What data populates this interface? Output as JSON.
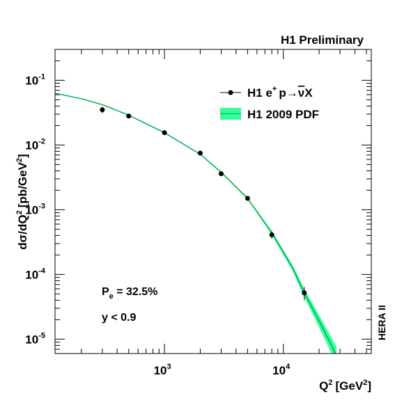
{
  "chart_data": {
    "type": "scatter",
    "title": "H1 Preliminary",
    "xlabel": "Q",
    "xlabel_sup": "2",
    "xlabel_unit": "[GeV",
    "xlabel_unit_sup": "2",
    "xlabel_close": "]",
    "ylabel": "dσ/dQ",
    "ylabel_sup": "2",
    "ylabel_unit": "[pb/GeV",
    "ylabel_unit_sup": "2",
    "ylabel_close": "]",
    "xscale": "log",
    "yscale": "log",
    "xlim": [
      120,
      55000
    ],
    "ylim": [
      6e-06,
      0.3
    ],
    "grid": false,
    "legend_position": "top-right",
    "x_ticks": [
      {
        "value": 1000,
        "base": "10",
        "exp": "3"
      },
      {
        "value": 10000,
        "base": "10",
        "exp": "4"
      }
    ],
    "y_ticks": [
      {
        "value": 1e-05,
        "base": "10",
        "exp": "-5"
      },
      {
        "value": 0.0001,
        "base": "10",
        "exp": "-4"
      },
      {
        "value": 0.001,
        "base": "10",
        "exp": "-3"
      },
      {
        "value": 0.01,
        "base": "10",
        "exp": "-2"
      },
      {
        "value": 0.1,
        "base": "10",
        "exp": "-1"
      }
    ],
    "series": [
      {
        "name": "H1 e+p→ν̄X",
        "legend_parts": {
          "a": "H1 e",
          "a_sup": "+",
          "b": "p→",
          "c": "ν",
          "d": "X"
        },
        "kind": "points",
        "color": "#000000",
        "points": [
          {
            "x": 300,
            "y": 0.035,
            "ylo": 0.031,
            "yhi": 0.039
          },
          {
            "x": 500,
            "y": 0.028,
            "ylo": 0.0265,
            "yhi": 0.0295
          },
          {
            "x": 1000,
            "y": 0.0155,
            "ylo": 0.0148,
            "yhi": 0.0162
          },
          {
            "x": 2000,
            "y": 0.0075,
            "ylo": 0.0071,
            "yhi": 0.0079
          },
          {
            "x": 3000,
            "y": 0.0036,
            "ylo": 0.0034,
            "yhi": 0.0038
          },
          {
            "x": 5000,
            "y": 0.0015,
            "ylo": 0.00142,
            "yhi": 0.00158
          },
          {
            "x": 8000,
            "y": 0.00041,
            "ylo": 0.00036,
            "yhi": 0.00046
          },
          {
            "x": 15000,
            "y": 5.2e-05,
            "ylo": 4e-05,
            "yhi": 6.4e-05
          }
        ]
      },
      {
        "name": "H1 2009 PDF",
        "kind": "band",
        "color": "#00b050",
        "fill": "#33ff99",
        "curve": [
          {
            "x": 120,
            "y": 0.063,
            "lo": 0.063,
            "hi": 0.063
          },
          {
            "x": 200,
            "y": 0.052,
            "lo": 0.052,
            "hi": 0.052
          },
          {
            "x": 300,
            "y": 0.042,
            "lo": 0.042,
            "hi": 0.042
          },
          {
            "x": 500,
            "y": 0.029,
            "lo": 0.029,
            "hi": 0.029
          },
          {
            "x": 1000,
            "y": 0.0155,
            "lo": 0.0154,
            "hi": 0.0156
          },
          {
            "x": 2000,
            "y": 0.0072,
            "lo": 0.0071,
            "hi": 0.0073
          },
          {
            "x": 3000,
            "y": 0.0038,
            "lo": 0.0037,
            "hi": 0.0039
          },
          {
            "x": 5000,
            "y": 0.0015,
            "lo": 0.00145,
            "hi": 0.00155
          },
          {
            "x": 8000,
            "y": 0.00044,
            "lo": 0.00041,
            "hi": 0.00047
          },
          {
            "x": 12000,
            "y": 0.000125,
            "lo": 0.000113,
            "hi": 0.000138
          },
          {
            "x": 15000,
            "y": 5.2e-05,
            "lo": 4.5e-05,
            "hi": 6e-05
          },
          {
            "x": 20000,
            "y": 1.92e-05,
            "lo": 1.55e-05,
            "hi": 2.35e-05
          },
          {
            "x": 25000,
            "y": 8.5e-06,
            "lo": 6.4e-06,
            "hi": 1.12e-05
          },
          {
            "x": 28000,
            "y": 5.5e-06,
            "lo": 4e-06,
            "hi": 7.5e-06
          }
        ]
      }
    ],
    "annotations": [
      {
        "text": "P",
        "sub": "e",
        "rest": " = 32.5%"
      },
      {
        "text": "y < 0.9"
      }
    ],
    "side_label": "HERA II"
  }
}
